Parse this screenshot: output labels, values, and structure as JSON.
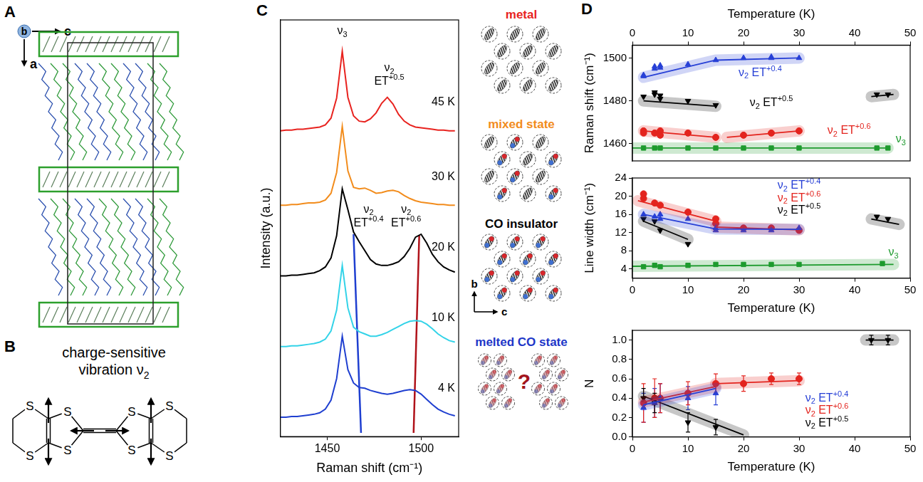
{
  "panel_labels": [
    "A",
    "B",
    "C",
    "D"
  ],
  "crystal_axes": [
    "b",
    "c",
    "a"
  ],
  "molecule": {
    "title": "charge-sensitive vibration ν2",
    "atoms": [
      "S",
      "S",
      "S",
      "S",
      "S",
      "S",
      "S",
      "S"
    ]
  },
  "states": [
    {
      "label": "metal",
      "color": "#e8231f"
    },
    {
      "label": "mixed state",
      "color": "#f28c1c"
    },
    {
      "label": "CO insulator",
      "color": "#000000"
    },
    {
      "label": "melted CO state",
      "color": "#2036c8"
    }
  ],
  "state_axes": [
    "b",
    "c"
  ],
  "question": "?",
  "chart_data": [
    {
      "type": "line",
      "x_label": "Raman shift (cm⁻¹)",
      "y_label": "Intensity (a.u.)",
      "xlim": [
        1425,
        1520
      ],
      "xticks": [
        1450,
        1500
      ],
      "ylim": [
        0,
        5.6
      ],
      "tick_labels": "x",
      "grid": false,
      "x": [
        1425,
        1428,
        1431,
        1434,
        1437,
        1440,
        1443,
        1446,
        1449,
        1452,
        1455,
        1458,
        1461,
        1464,
        1467,
        1470,
        1473,
        1476,
        1479,
        1482,
        1485,
        1488,
        1491,
        1494,
        1497,
        1500,
        1503,
        1506,
        1509,
        1512,
        1515,
        1518
      ],
      "series": [
        {
          "name": "45 K",
          "color": "#e8231f",
          "values": [
            4.11,
            4.12,
            4.12,
            4.13,
            4.13,
            4.14,
            4.15,
            4.16,
            4.19,
            4.28,
            4.55,
            5.18,
            4.56,
            4.31,
            4.24,
            4.23,
            4.27,
            4.35,
            4.48,
            4.56,
            4.47,
            4.33,
            4.24,
            4.19,
            4.16,
            4.15,
            4.14,
            4.13,
            4.12,
            4.12,
            4.11,
            4.11
          ]
        },
        {
          "name": "30 K",
          "color": "#f28c1c",
          "values": [
            3.11,
            3.11,
            3.12,
            3.12,
            3.13,
            3.14,
            3.14,
            3.15,
            3.18,
            3.27,
            3.55,
            4.17,
            3.57,
            3.35,
            3.33,
            3.34,
            3.31,
            3.27,
            3.28,
            3.3,
            3.31,
            3.29,
            3.24,
            3.2,
            3.17,
            3.15,
            3.14,
            3.13,
            3.12,
            3.12,
            3.11,
            3.11
          ]
        },
        {
          "name": "20 K",
          "color": "#000000",
          "values": [
            2.16,
            2.16,
            2.17,
            2.17,
            2.18,
            2.19,
            2.2,
            2.23,
            2.28,
            2.4,
            2.7,
            3.33,
            3.05,
            2.75,
            2.62,
            2.5,
            2.38,
            2.32,
            2.3,
            2.3,
            2.32,
            2.35,
            2.42,
            2.53,
            2.68,
            2.72,
            2.6,
            2.45,
            2.35,
            2.28,
            2.24,
            2.21
          ]
        },
        {
          "name": "10 K",
          "color": "#33d3e8",
          "values": [
            1.21,
            1.21,
            1.22,
            1.22,
            1.23,
            1.24,
            1.25,
            1.27,
            1.31,
            1.42,
            1.7,
            2.3,
            1.73,
            1.47,
            1.41,
            1.38,
            1.35,
            1.35,
            1.37,
            1.4,
            1.44,
            1.48,
            1.52,
            1.55,
            1.56,
            1.55,
            1.51,
            1.45,
            1.38,
            1.33,
            1.29,
            1.27
          ]
        },
        {
          "name": "4 K",
          "color": "#1f3fd0",
          "values": [
            0.26,
            0.26,
            0.27,
            0.27,
            0.28,
            0.29,
            0.3,
            0.32,
            0.37,
            0.49,
            0.78,
            1.35,
            0.9,
            0.72,
            0.66,
            0.65,
            0.62,
            0.6,
            0.58,
            0.57,
            0.58,
            0.6,
            0.62,
            0.63,
            0.62,
            0.57,
            0.5,
            0.43,
            0.37,
            0.33,
            0.3,
            0.28
          ]
        }
      ],
      "guide_lines": [
        {
          "color": "#1f3fd0",
          "x": [
            1464,
            1468
          ],
          "values": [
            2.72,
            0.05
          ]
        },
        {
          "color": "#b0121a",
          "x": [
            1499,
            1496
          ],
          "values": [
            2.7,
            0.05
          ]
        }
      ],
      "annotations": [
        {
          "text": "ν3",
          "x": 1458,
          "y": 5.45,
          "color": "#000000"
        },
        {
          "text": "ν2 ET+0.5",
          "x": 1483,
          "y": 4.95,
          "color": "#000000"
        },
        {
          "text": "ν2 ET+0.4",
          "x": 1472,
          "y": 3.05,
          "color": "#000000"
        },
        {
          "text": "ν2 ET+0.6",
          "x": 1492,
          "y": 3.05,
          "color": "#000000"
        }
      ]
    },
    {
      "type": "scatter",
      "x_label": "Temperature (K)",
      "y_label": "Raman shift (cm⁻¹)",
      "xlim": [
        0,
        50
      ],
      "xticks": [
        0,
        10,
        20,
        30,
        40,
        50
      ],
      "ylim": [
        1452,
        1506
      ],
      "yticks": [
        1460,
        1480,
        1500
      ],
      "grid": false,
      "series": [
        {
          "name": "ν2 ET+0.4",
          "color": "#2740d6",
          "marker": "triangle",
          "x": [
            2,
            2,
            4,
            4,
            5,
            5,
            10,
            15,
            20,
            25,
            25,
            30
          ],
          "values": [
            1491.5,
            1492,
            1495,
            1496,
            1496.5,
            1495.5,
            1497,
            1499,
            1500,
            1500,
            1500.5,
            1500
          ],
          "fits": [
            {
              "x": [
                2,
                15,
                30
              ],
              "values": [
                1491,
                1499,
                1500
              ]
            }
          ],
          "label_pos": [
            23,
            1493
          ]
        },
        {
          "name": "ν2 ET+0.5",
          "color": "#000000",
          "marker": "triangle_down",
          "x": [
            2,
            4,
            4,
            5,
            5,
            10,
            15,
            44,
            46
          ],
          "values": [
            1482,
            1484,
            1483,
            1482.5,
            1481,
            1480,
            1478,
            1483,
            1483
          ],
          "fits": [
            {
              "x": [
                2,
                15
              ],
              "values": [
                1480,
                1477.5
              ]
            },
            {
              "x": [
                43,
                47
              ],
              "values": [
                1482,
                1483
              ]
            }
          ],
          "label_pos": [
            25,
            1479
          ]
        },
        {
          "name": "ν2 ET+0.6",
          "color": "#e3241e",
          "marker": "circle",
          "x": [
            2,
            2,
            4,
            5,
            5,
            10,
            15,
            20,
            25,
            30
          ],
          "values": [
            1466,
            1465,
            1465,
            1464,
            1466,
            1465,
            1463,
            1464,
            1465,
            1466
          ],
          "fits": [
            {
              "x": [
                2,
                15
              ],
              "values": [
                1466,
                1463
              ]
            },
            {
              "x": [
                17,
                30
              ],
              "values": [
                1463,
                1466
              ]
            }
          ],
          "label_pos": [
            39,
            1466
          ]
        },
        {
          "name": "ν3",
          "color": "#1e9b2f",
          "marker": "square",
          "x": [
            2,
            4,
            5,
            10,
            15,
            20,
            25,
            30,
            44,
            46
          ],
          "values": [
            1458,
            1458,
            1458,
            1458,
            1458,
            1458,
            1458,
            1458,
            1458,
            1458
          ],
          "fits": [
            {
              "x": [
                0,
                46
              ],
              "values": [
                1458,
                1458
              ]
            }
          ],
          "label_pos": [
            48.3,
            1462
          ]
        }
      ]
    },
    {
      "type": "scatter",
      "x_label": "Temperature (K)",
      "y_label": "Line width (cm⁻¹)",
      "xlim": [
        0,
        50
      ],
      "xticks": [
        0,
        10,
        20,
        30,
        40,
        50
      ],
      "ylim": [
        2,
        24
      ],
      "yticks": [
        4,
        8,
        12,
        16,
        20,
        24
      ],
      "grid": false,
      "series": [
        {
          "name": "ν2 ET+0.4",
          "color": "#2740d6",
          "marker": "triangle",
          "x": [
            2,
            4,
            5,
            5,
            10,
            15,
            15,
            20,
            25,
            30
          ],
          "values": [
            16,
            15.5,
            16,
            15,
            15,
            12.5,
            13,
            12.5,
            12.5,
            13
          ],
          "fits": [
            {
              "x": [
                2,
                15,
                30
              ],
              "values": [
                16,
                12.8,
                12.7
              ]
            }
          ],
          "label_pos": [
            30,
            22.3
          ]
        },
        {
          "name": "ν2 ET+0.6",
          "color": "#e3241e",
          "marker": "circle",
          "x": [
            2,
            2,
            4,
            5,
            10,
            15,
            15,
            20,
            25,
            30
          ],
          "values": [
            20.5,
            19.5,
            18.5,
            18,
            16.5,
            15,
            14,
            13,
            13,
            12.5
          ],
          "fits": [
            {
              "x": [
                1,
                15
              ],
              "values": [
                19,
                14.5
              ]
            },
            {
              "x": [
                15,
                30
              ],
              "values": [
                13.2,
                12.6
              ]
            }
          ],
          "label_pos": [
            30,
            19.6
          ]
        },
        {
          "name": "ν2 ET+0.5",
          "color": "#000000",
          "marker": "triangle_down",
          "x": [
            2,
            4,
            5,
            10,
            44,
            46
          ],
          "values": [
            15,
            14.5,
            12.5,
            9.5,
            15.5,
            15
          ],
          "fits": [
            {
              "x": [
                2,
                10
              ],
              "values": [
                14.5,
                10.5
              ]
            },
            {
              "x": [
                43,
                48
              ],
              "values": [
                15,
                13.8
              ]
            }
          ],
          "label_pos": [
            30,
            16.9
          ]
        },
        {
          "name": "ν3",
          "color": "#1e9b2f",
          "marker": "square",
          "x": [
            2,
            4,
            5,
            10,
            15,
            20,
            25,
            30,
            45
          ],
          "values": [
            4.5,
            4.8,
            4.5,
            4.8,
            5,
            5,
            5,
            5,
            5.2
          ],
          "fits": [
            {
              "x": [
                0,
                47
              ],
              "values": [
                4.6,
                5
              ]
            }
          ],
          "label_pos": [
            47,
            7.6
          ]
        }
      ]
    },
    {
      "type": "scatter",
      "x_label": "Temperature (K)",
      "y_label": "N",
      "xlim": [
        0,
        50
      ],
      "xticks": [
        0,
        10,
        20,
        30,
        40,
        50
      ],
      "ylim": [
        0,
        1.1
      ],
      "yticks": [
        {
          "value": 0,
          "label": "0.0"
        },
        0.2,
        0.4,
        0.6,
        0.8,
        {
          "value": 1,
          "label": "1.0"
        }
      ],
      "grid": false,
      "series": [
        {
          "name": "ν2 ET+0.4",
          "color": "#2740d6",
          "marker": "triangle",
          "x": [
            2,
            4,
            5,
            10,
            15
          ],
          "values": [
            0.3,
            0.35,
            0.4,
            0.4,
            0.45
          ],
          "errors": [
            0.15,
            0.15,
            0.15,
            0.12,
            0.12
          ],
          "fits": [
            {
              "x": [
                2,
                15
              ],
              "values": [
                0.33,
                0.5
              ]
            }
          ],
          "label_pos": [
            35,
            0.4
          ]
        },
        {
          "name": "ν2 ET+0.6",
          "color": "#e3241e",
          "marker": "circle",
          "x": [
            2,
            4,
            5,
            10,
            15,
            20,
            25,
            30
          ],
          "values": [
            0.35,
            0.4,
            0.4,
            0.45,
            0.55,
            0.55,
            0.6,
            0.6
          ],
          "errors": [
            0.2,
            0.2,
            0.15,
            0.12,
            0.1,
            0.08,
            0.06,
            0.06
          ],
          "fits": [
            {
              "x": [
                2,
                15
              ],
              "values": [
                0.36,
                0.52
              ]
            },
            {
              "x": [
                15,
                30
              ],
              "values": [
                0.55,
                0.58
              ]
            }
          ],
          "label_pos": [
            35,
            0.27
          ]
        },
        {
          "name": "ν2 ET+0.5",
          "color": "#000000",
          "marker": "triangle_down",
          "x": [
            2,
            4,
            10,
            15,
            43,
            46
          ],
          "values": [
            0.4,
            0.35,
            0.15,
            0.1,
            1.0,
            1.0
          ],
          "errors": [
            0.1,
            0.1,
            0.1,
            0.08,
            0.05,
            0.05
          ],
          "fits": [
            {
              "x": [
                2,
                20
              ],
              "values": [
                0.42,
                0.02
              ]
            },
            {
              "x": [
                42,
                47
              ],
              "values": [
                1.0,
                1.0
              ]
            }
          ],
          "label_pos": [
            35,
            0.14
          ]
        }
      ]
    }
  ]
}
